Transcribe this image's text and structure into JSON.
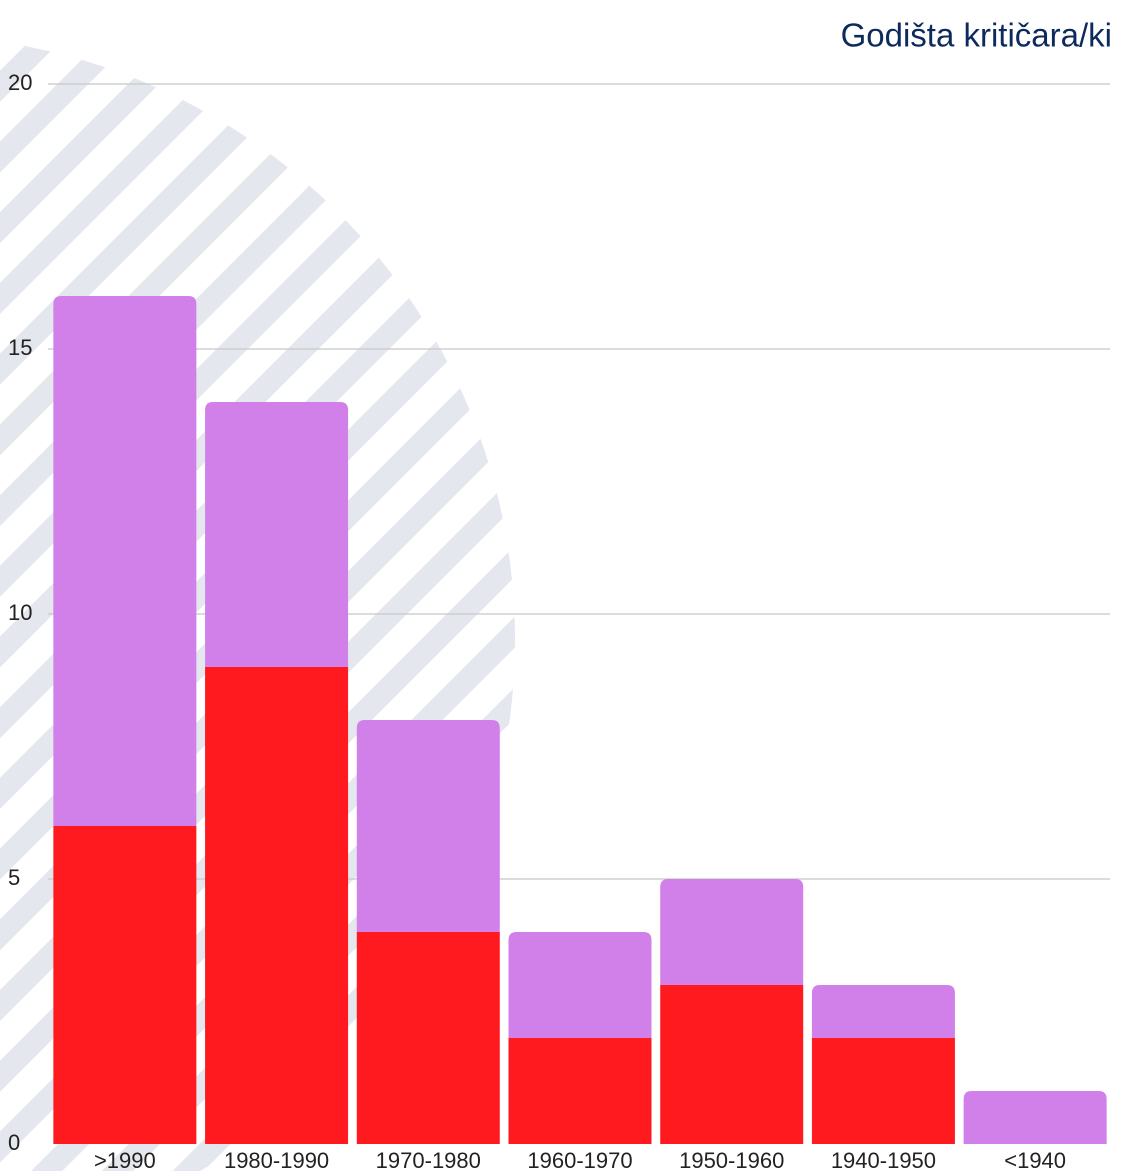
{
  "chart_data": {
    "type": "stacked_bar",
    "title": "Godišta kritičara/ki",
    "categories": [
      ">1990",
      "1980-1990",
      "1970-1980",
      "1960-1970",
      "1950-1960",
      "1940-1950",
      "<1940"
    ],
    "series": [
      {
        "color": "#ff1a1f",
        "values": [
          6,
          9,
          4,
          2,
          3,
          2,
          0
        ]
      },
      {
        "color": "#d080e8",
        "values": [
          10,
          5,
          4,
          2,
          2,
          1,
          1
        ]
      }
    ],
    "ylim": [
      0,
      20
    ],
    "yticks": [
      0,
      5,
      10,
      15,
      20
    ],
    "grid": true
  }
}
